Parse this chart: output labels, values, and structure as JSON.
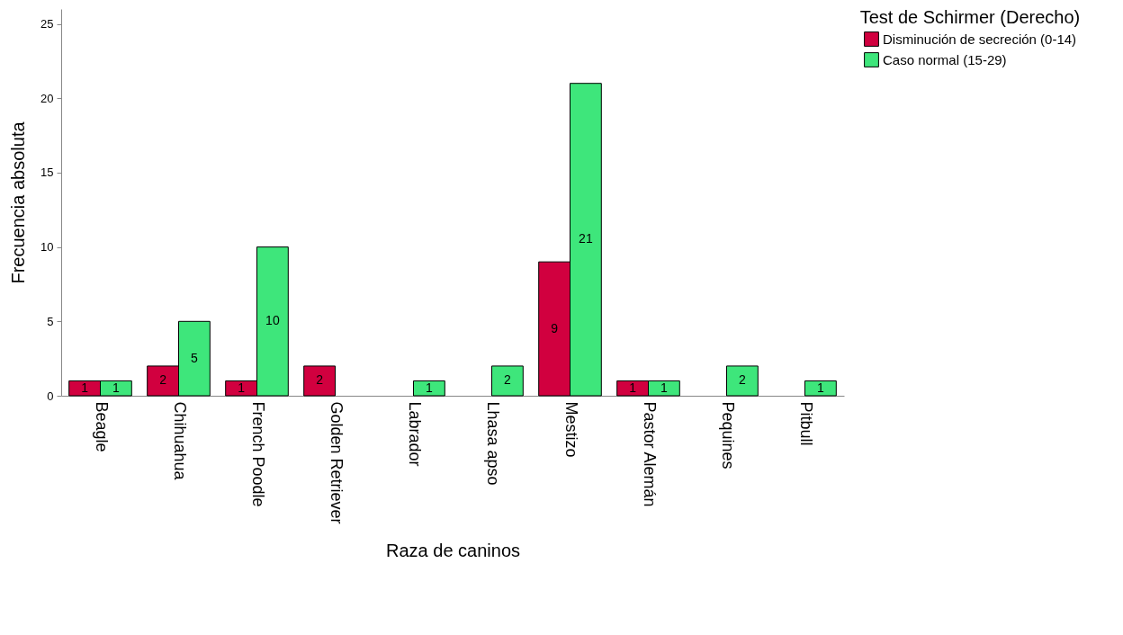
{
  "chart_data": {
    "type": "bar",
    "xlabel": "Raza de caninos",
    "ylabel": "Frecuencia absoluta",
    "legend_title": "Test de Schirmer (Derecho)",
    "categories": [
      "Beagle",
      "Chihuahua",
      "French Poodle",
      "Golden Retriever",
      "Labrador",
      "Lhasa apso",
      "Mestizo",
      "Pastor Alemán",
      "Pequines",
      "Pitbull"
    ],
    "series": [
      {
        "name": "Disminución de secreción (0-14)",
        "color": "#d1003f",
        "values": [
          1,
          2,
          1,
          2,
          null,
          null,
          9,
          1,
          null,
          null
        ]
      },
      {
        "name": "Caso normal (15-29)",
        "color": "#3ee67b",
        "values": [
          1,
          5,
          10,
          null,
          1,
          2,
          21,
          1,
          2,
          1
        ]
      }
    ],
    "ylim": [
      0,
      26
    ],
    "yticks": [
      0,
      5,
      10,
      15,
      20,
      25
    ],
    "grid": false,
    "legend": "top right",
    "data_labels": true
  }
}
